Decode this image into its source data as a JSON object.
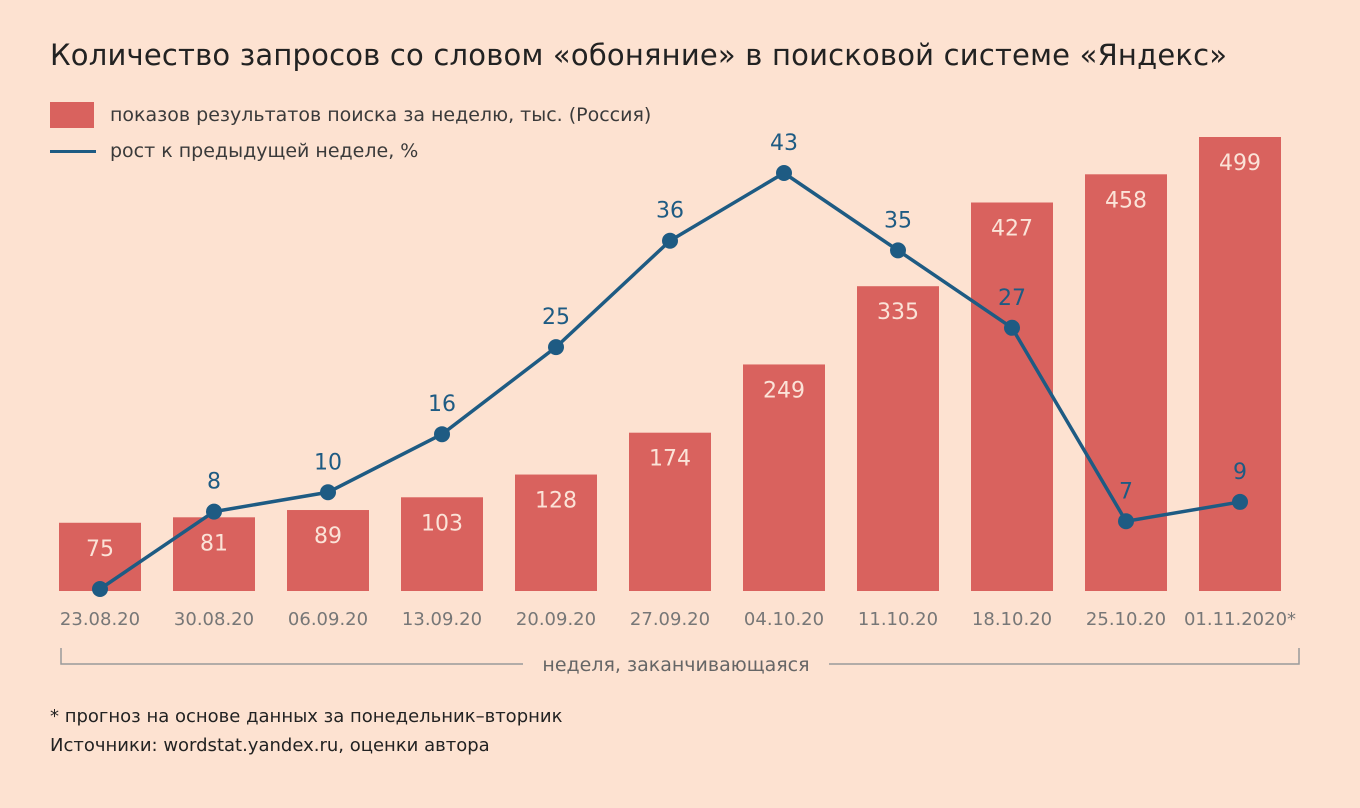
{
  "colors": {
    "background": "#fde2d1",
    "bar": "#d9625e",
    "line": "#1e5b83",
    "bar_label": "#fbe3d8",
    "axis_text": "#777777"
  },
  "chart_data": {
    "type": "bar",
    "title": "Количество запросов со словом «обоняние» в поисковой системе «Яндекс»",
    "xlabel": "неделя, заканчивающаяся",
    "categories": [
      "23.08.20",
      "30.08.20",
      "06.09.20",
      "13.09.20",
      "20.09.20",
      "27.09.20",
      "04.10.20",
      "11.10.20",
      "18.10.20",
      "25.10.20",
      "01.11.2020*"
    ],
    "series": [
      {
        "name": "показов результатов поиска за неделю, тыс. (Россия)",
        "type": "bar",
        "values": [
          75,
          81,
          89,
          103,
          128,
          174,
          249,
          335,
          427,
          458,
          499
        ]
      },
      {
        "name": "рост к предыдущей неделе, %",
        "type": "line",
        "values": [
          null,
          8,
          10,
          16,
          25,
          36,
          43,
          35,
          27,
          7,
          9
        ]
      }
    ],
    "legend_position": "top-left",
    "grid": false
  },
  "footnotes": {
    "note": "* прогноз на основе данных за понедельник–вторник",
    "sources": "Источники: wordstat.yandex.ru, оценки автора"
  }
}
